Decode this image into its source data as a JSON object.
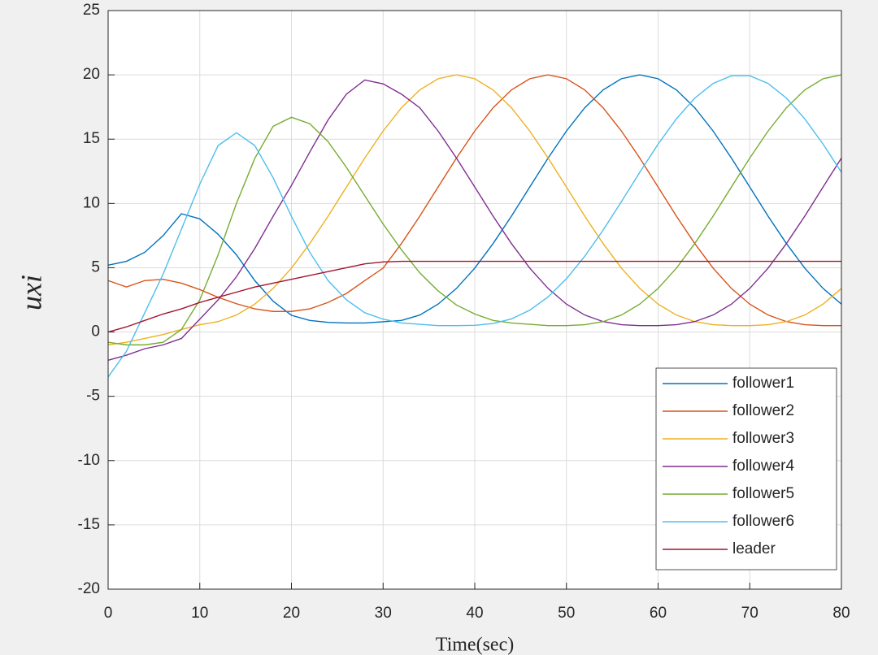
{
  "chart_data": {
    "type": "line",
    "xlabel": "Time(sec)",
    "ylabel": "uxi",
    "xlim": [
      0,
      80
    ],
    "xticks": [
      0,
      10,
      20,
      30,
      40,
      50,
      60,
      70,
      80
    ],
    "ylim": [
      -20,
      25
    ],
    "yticks": [
      -20,
      -15,
      -10,
      -5,
      0,
      5,
      10,
      15,
      20,
      25
    ],
    "grid": true,
    "legend": "lower right",
    "x": [
      0,
      2,
      4,
      6,
      8,
      10,
      12,
      14,
      16,
      18,
      20,
      22,
      24,
      26,
      28,
      30,
      32,
      34,
      36,
      38,
      40,
      42,
      44,
      46,
      48,
      50,
      52,
      54,
      56,
      58,
      60,
      62,
      64,
      66,
      68,
      70,
      72,
      74,
      76,
      78,
      80
    ],
    "series": [
      {
        "name": "follower1",
        "color": "#0072BD",
        "values": [
          5.2,
          5.5,
          6.2,
          7.5,
          9.2,
          8.8,
          7.6,
          6.0,
          4.0,
          2.4,
          1.3,
          0.9,
          0.75,
          0.7,
          0.7,
          0.8,
          0.9,
          1.32,
          2.17,
          3.39,
          4.97,
          6.88,
          9.01,
          11.28,
          13.53,
          15.63,
          17.44,
          18.83,
          19.7,
          20,
          19.7,
          18.83,
          17.44,
          15.63,
          13.53,
          11.28,
          9.01,
          6.88,
          4.97,
          3.39,
          2.17
        ]
      },
      {
        "name": "follower2",
        "color": "#D95319",
        "values": [
          4.0,
          3.5,
          4.0,
          4.1,
          3.8,
          3.3,
          2.7,
          2.2,
          1.8,
          1.6,
          1.6,
          1.8,
          2.3,
          3.0,
          4.0,
          4.97,
          6.88,
          9.01,
          11.28,
          13.53,
          15.63,
          17.44,
          18.83,
          19.7,
          20,
          19.7,
          18.83,
          17.44,
          15.63,
          13.53,
          11.28,
          9.01,
          6.88,
          4.97,
          3.39,
          2.17,
          1.32,
          0.81,
          0.57,
          0.5,
          0.5
        ]
      },
      {
        "name": "follower3",
        "color": "#EDB120",
        "values": [
          -1.0,
          -0.8,
          -0.5,
          -0.2,
          0.2,
          0.57,
          0.81,
          1.32,
          2.17,
          3.39,
          4.97,
          6.88,
          9.01,
          11.28,
          13.53,
          15.63,
          17.44,
          18.83,
          19.7,
          20,
          19.7,
          18.83,
          17.44,
          15.63,
          13.53,
          11.28,
          9.01,
          6.88,
          4.97,
          3.39,
          2.17,
          1.32,
          0.81,
          0.57,
          0.5,
          0.5,
          0.57,
          0.81,
          1.32,
          2.17,
          3.39
        ]
      },
      {
        "name": "follower4",
        "color": "#7E2F8E",
        "values": [
          -2.2,
          -1.8,
          -1.3,
          -1.0,
          -0.5,
          1.0,
          2.5,
          4.3,
          6.5,
          9.0,
          11.4,
          14.0,
          16.5,
          18.5,
          19.6,
          19.3,
          18.5,
          17.44,
          15.63,
          13.53,
          11.28,
          9.01,
          6.88,
          4.97,
          3.39,
          2.17,
          1.32,
          0.81,
          0.57,
          0.5,
          0.5,
          0.57,
          0.81,
          1.32,
          2.17,
          3.39,
          4.97,
          6.88,
          9.01,
          11.28,
          13.53
        ]
      },
      {
        "name": "follower5",
        "color": "#77AC30",
        "values": [
          -0.8,
          -1.0,
          -1.0,
          -0.8,
          0.2,
          2.5,
          6.0,
          10.0,
          13.5,
          16.0,
          16.7,
          16.2,
          14.8,
          12.8,
          10.6,
          8.4,
          6.4,
          4.6,
          3.2,
          2.1,
          1.4,
          0.9,
          0.7,
          0.6,
          0.5,
          0.5,
          0.57,
          0.81,
          1.32,
          2.17,
          3.39,
          4.97,
          6.88,
          9.01,
          11.28,
          13.53,
          15.63,
          17.44,
          18.83,
          19.7,
          20
        ]
      },
      {
        "name": "follower6",
        "color": "#4DBEEE",
        "values": [
          -3.5,
          -1.5,
          1.5,
          4.5,
          8.0,
          11.5,
          14.5,
          15.5,
          14.5,
          12.0,
          9.0,
          6.2,
          4.0,
          2.5,
          1.5,
          1.0,
          0.7,
          0.6,
          0.5,
          0.5,
          0.52,
          0.66,
          1.02,
          1.7,
          2.73,
          4.14,
          5.89,
          7.93,
          10.14,
          12.42,
          14.61,
          16.58,
          18.19,
          19.33,
          19.93,
          19.93,
          19.33,
          18.19,
          16.58,
          14.61,
          12.42
        ]
      },
      {
        "name": "leader",
        "color": "#A2142F",
        "values": [
          0,
          0.4,
          0.9,
          1.4,
          1.8,
          2.3,
          2.7,
          3.1,
          3.5,
          3.8,
          4.1,
          4.4,
          4.7,
          5.0,
          5.3,
          5.45,
          5.5,
          5.5,
          5.5,
          5.5,
          5.5,
          5.5,
          5.5,
          5.5,
          5.5,
          5.5,
          5.5,
          5.5,
          5.5,
          5.5,
          5.5,
          5.5,
          5.5,
          5.5,
          5.5,
          5.5,
          5.5,
          5.5,
          5.5,
          5.5,
          5.5
        ]
      }
    ]
  }
}
